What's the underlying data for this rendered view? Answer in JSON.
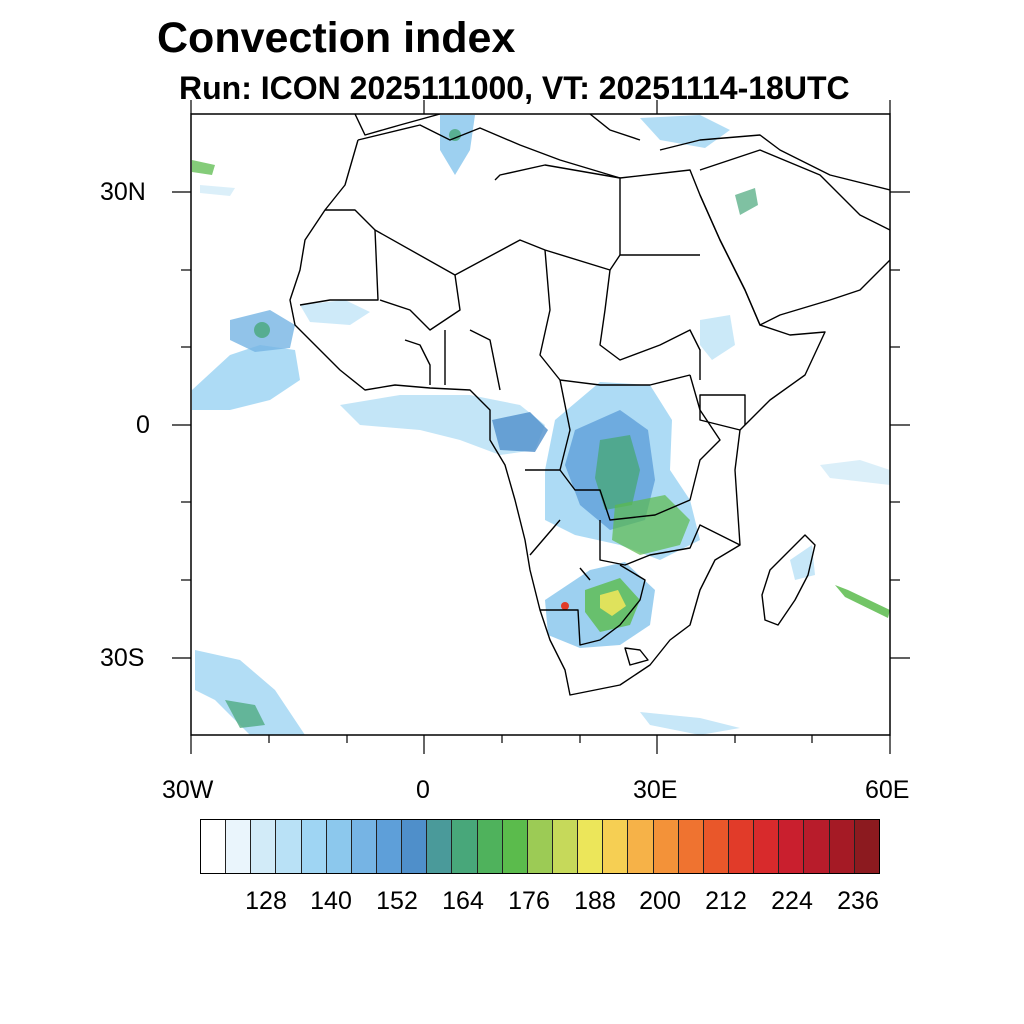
{
  "title": "Convection index",
  "subtitle": "Run: ICON 2025111000,  VT: 20251114-18UTC",
  "map": {
    "lon_range": [
      -30,
      60
    ],
    "lat_range": [
      -40,
      40
    ],
    "lat_ticks": [
      {
        "value": 30,
        "label": "30N"
      },
      {
        "value": 0,
        "label": "0"
      },
      {
        "value": -30,
        "label": "30S"
      }
    ],
    "lon_ticks": [
      {
        "value": -30,
        "label": "30W"
      },
      {
        "value": 0,
        "label": "0"
      },
      {
        "value": 30,
        "label": "30E"
      },
      {
        "value": 60,
        "label": "60E"
      }
    ],
    "minor_lon_ticks": [
      -20,
      -10,
      10,
      20,
      40,
      50
    ],
    "minor_lat_ticks": [
      20,
      10,
      -10,
      -20
    ]
  },
  "colorbar": {
    "colors": [
      "#ffffff",
      "#eaf5fc",
      "#d2ebf8",
      "#b9e1f6",
      "#9fd5f3",
      "#8cc8ed",
      "#76b4e4",
      "#5e9fd9",
      "#4f8fca",
      "#4a9a9a",
      "#48a77a",
      "#4fb25c",
      "#5bbb4c",
      "#9ccb55",
      "#c6d95a",
      "#ece65a",
      "#f6cf53",
      "#f6b248",
      "#f39239",
      "#ef7330",
      "#e9572a",
      "#e13b29",
      "#d82a2c",
      "#c91f2e",
      "#b81c2b",
      "#a51a25",
      "#8c1a1f"
    ],
    "labels": [
      "128",
      "140",
      "152",
      "164",
      "176",
      "188",
      "200",
      "212",
      "224",
      "236"
    ]
  }
}
